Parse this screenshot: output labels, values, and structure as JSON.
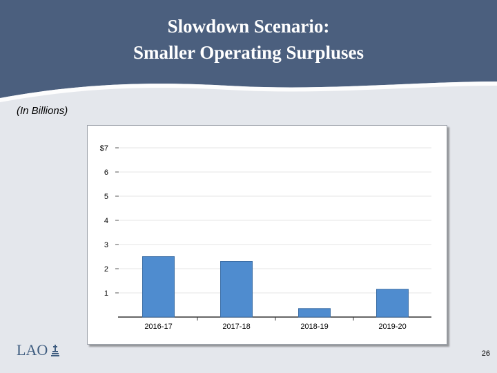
{
  "slide": {
    "title_line1": "Slowdown Scenario:",
    "title_line2": "Smaller Operating Surpluses",
    "units_note": "(In Billions)",
    "logo_text": "LAO",
    "page_number": "26"
  },
  "colors": {
    "header": "#4b5f7e",
    "swoosh": "#ffffff",
    "bar": "#4f8ccf",
    "bar_edge": "#3b6ea6",
    "grid": "#e6e6e6",
    "axis": "#333333"
  },
  "chart_data": {
    "type": "bar",
    "title": "",
    "xlabel": "",
    "ylabel": "",
    "categories": [
      "2016-17",
      "2017-18",
      "2018-19",
      "2019-20"
    ],
    "values": [
      2.5,
      2.3,
      0.35,
      1.15
    ],
    "ylim": [
      0,
      7
    ],
    "y_ticks": [
      {
        "value": 1,
        "label": "1"
      },
      {
        "value": 2,
        "label": "2"
      },
      {
        "value": 3,
        "label": "3"
      },
      {
        "value": 4,
        "label": "4"
      },
      {
        "value": 5,
        "label": "5"
      },
      {
        "value": 6,
        "label": "6"
      },
      {
        "value": 7,
        "label": "$7"
      }
    ],
    "grid": true
  }
}
